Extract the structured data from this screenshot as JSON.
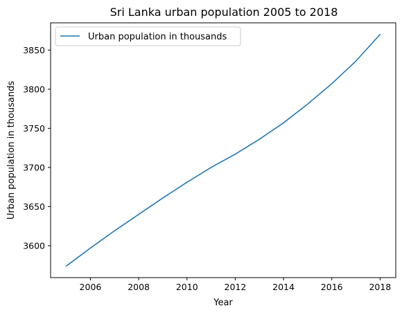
{
  "chart_data": {
    "type": "line",
    "title": "Sri Lanka urban population 2005 to 2018",
    "xlabel": "Year",
    "ylabel": "Urban population in thousands",
    "x": [
      2005,
      2006,
      2007,
      2008,
      2009,
      2010,
      2011,
      2012,
      2013,
      2014,
      2015,
      2016,
      2017,
      2018
    ],
    "series": [
      {
        "name": "Urban population in thousands",
        "color": "#1f77b4",
        "values": [
          3574,
          3597,
          3619,
          3640,
          3661,
          3681,
          3700,
          3717,
          3736,
          3757,
          3781,
          3807,
          3836,
          3870
        ]
      }
    ],
    "xlim": [
      2004.35,
      2018.65
    ],
    "ylim": [
      3559.2,
      3884.8
    ],
    "xticks": [
      2006,
      2008,
      2010,
      2012,
      2014,
      2016,
      2018
    ],
    "xtick_labels": [
      "2006",
      "2008",
      "2010",
      "2012",
      "2014",
      "2016",
      "2018"
    ],
    "yticks": [
      3600,
      3650,
      3700,
      3750,
      3800,
      3850
    ],
    "ytick_labels": [
      "3600",
      "3650",
      "3700",
      "3750",
      "3800",
      "3850"
    ],
    "legend_position": "top-left",
    "grid": false
  }
}
